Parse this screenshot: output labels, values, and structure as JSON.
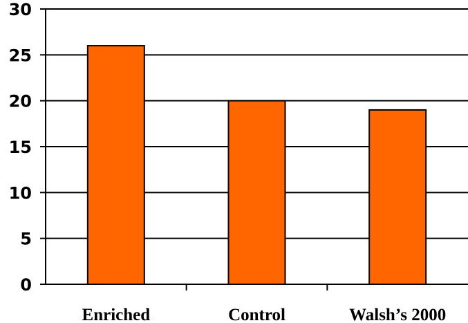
{
  "chart_data": {
    "type": "bar",
    "categories": [
      "Enriched",
      "Control",
      "Walsh’s 2000"
    ],
    "values": [
      26,
      20,
      19
    ],
    "ylim": [
      0,
      30
    ],
    "yticks": [
      0,
      5,
      10,
      15,
      20,
      25,
      30
    ],
    "grid": true,
    "legend": "none",
    "title": "",
    "xlabel": "",
    "ylabel": "",
    "bar_color": "#FF6600",
    "axis_color": "#000000"
  }
}
